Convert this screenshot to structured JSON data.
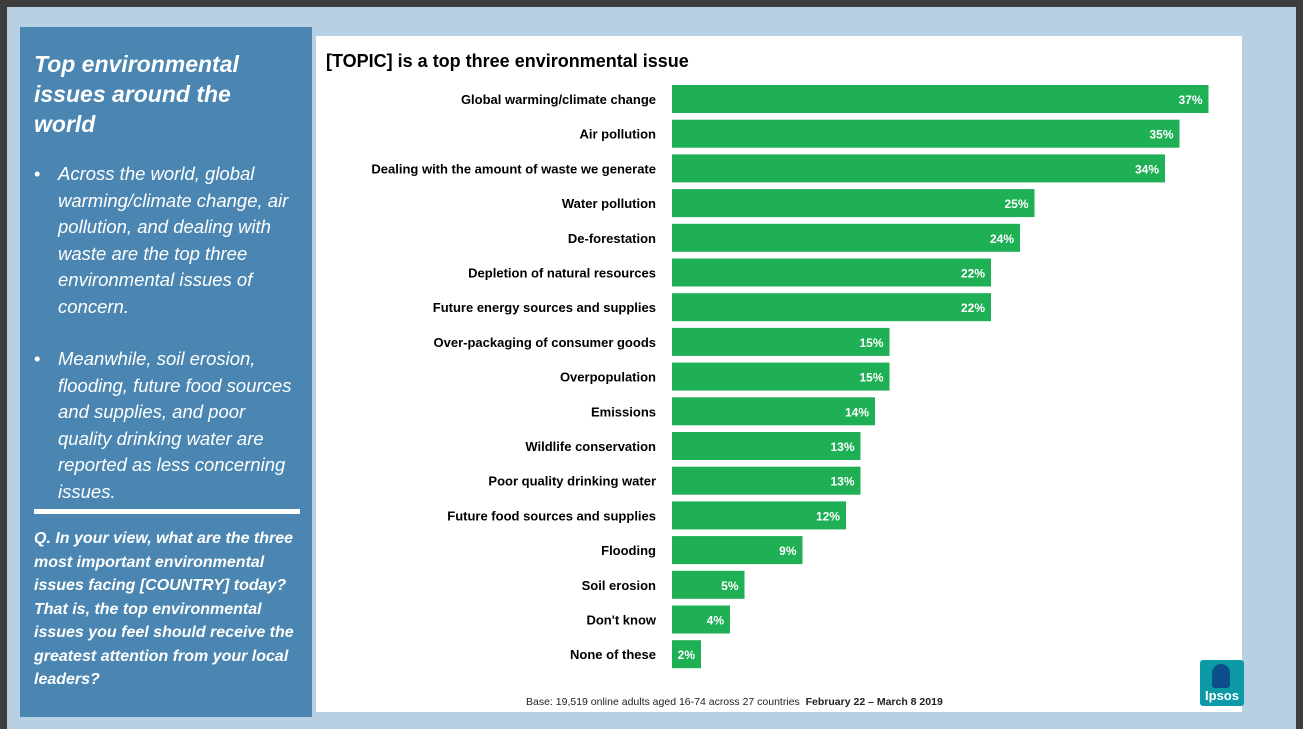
{
  "sidebar": {
    "title": "Top environmental issues around the world",
    "bullets": [
      "Across the world, global warming/climate change, air pollution, and dealing with waste are the top three environmental issues of concern.",
      "Meanwhile, soil erosion, flooding, future food sources and supplies, and poor quality drinking water are reported as less concerning issues."
    ],
    "question": "Q. In your view, what are the three most important environmental issues facing [COUNTRY] today? That is, the top environmental issues you feel should receive the greatest attention from your local leaders?"
  },
  "footnote": {
    "base": "Base: 19,519 online adults aged 16-74 across 27 countries",
    "dates": "February 22 – March 8 2019"
  },
  "logo": {
    "text": "Ipsos"
  },
  "colors": {
    "bar": "#1faf55",
    "sidebar": "#4a86b1",
    "background": "#b7d0e3",
    "logo": "#0c9aa6"
  },
  "chart_data": {
    "type": "bar",
    "orientation": "horizontal",
    "title": "[TOPIC] is a top three environmental issue",
    "categories": [
      "Global warming/climate change",
      "Air pollution",
      "Dealing with the amount of waste we generate",
      "Water pollution",
      "De-forestation",
      "Depletion of natural resources",
      "Future energy sources and supplies",
      "Over-packaging of consumer goods",
      "Overpopulation",
      "Emissions",
      "Wildlife conservation",
      "Poor quality drinking water",
      "Future food sources and supplies",
      "Flooding",
      "Soil erosion",
      "Don't know",
      "None of these"
    ],
    "values": [
      37,
      35,
      34,
      25,
      24,
      22,
      22,
      15,
      15,
      14,
      13,
      13,
      12,
      9,
      5,
      4,
      2
    ],
    "data_labels": [
      "37%",
      "35%",
      "34%",
      "25%",
      "24%",
      "22%",
      "22%",
      "15%",
      "15%",
      "14%",
      "13%",
      "13%",
      "12%",
      "9%",
      "5%",
      "4%",
      "2%"
    ],
    "xlim": [
      0,
      40
    ],
    "grid": false,
    "legend": "none"
  }
}
